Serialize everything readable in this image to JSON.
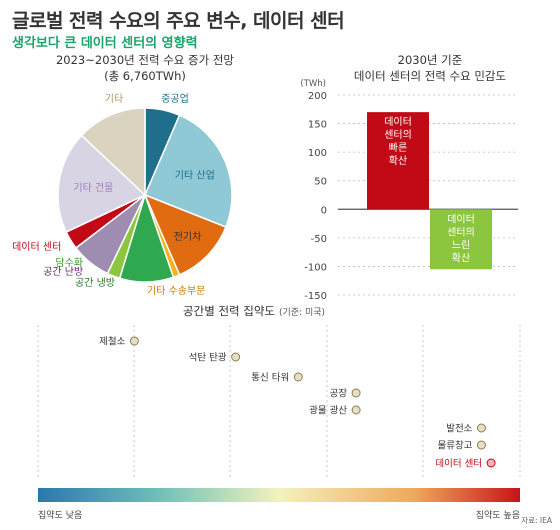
{
  "header": {
    "title": "글로벌 전력 수요의 주요 변수, 데이터 센터",
    "subtitle": "생각보다 큰 데이터 센터의 영향력"
  },
  "chart_data": [
    {
      "type": "pie",
      "title": "2023~2030년 전력 수요 증가 전망",
      "subtitle": "(총 6,760TWh)",
      "slices": [
        {
          "label": "중공업",
          "value": 0.065,
          "color": "#1f6e8c",
          "label_color": "#1f6e8c"
        },
        {
          "label": "기타 산업",
          "value": 0.245,
          "color": "#8ec9d5",
          "label_color": "#1f6e8c"
        },
        {
          "label": "전기차",
          "value": 0.125,
          "color": "#e06b10",
          "label_color": "#333333"
        },
        {
          "label": "기타 수송부문",
          "value": 0.012,
          "color": "#f2b21c",
          "label_color": "#c87a00"
        },
        {
          "label": "공간 냉방",
          "value": 0.1,
          "color": "#2fa84f",
          "label_color": "#2a7a2a"
        },
        {
          "label": "담수화",
          "value": 0.024,
          "color": "#8cc63f",
          "label_color": "#3c9a2a"
        },
        {
          "label": "공간 난방",
          "value": 0.075,
          "color": "#9e8db0",
          "label_color": "#6a2a7a"
        },
        {
          "label": "데이터 센터",
          "value": 0.034,
          "color": "#c20a17",
          "label_color": "#c20a17"
        },
        {
          "label": "기타 건물",
          "value": 0.19,
          "color": "#d8d4e4",
          "label_color": "#9b7fc0"
        },
        {
          "label": "기타",
          "value": 0.13,
          "color": "#d9d3c0",
          "label_color": "#a89a6a"
        }
      ]
    },
    {
      "type": "bar",
      "title": "2030년 기준",
      "subtitle": "데이터 센터의 전력 수요 민감도",
      "ylabel": "(TWh)",
      "ylim": [
        -150,
        200
      ],
      "yticks": [
        200,
        150,
        100,
        50,
        0,
        -50,
        -100,
        -150
      ],
      "bars": [
        {
          "label": "데이터 센터의 빠른 확산",
          "lines": [
            "데이터",
            "센터의",
            "빠른",
            "확산"
          ],
          "value": 170,
          "color": "#c20a17"
        },
        {
          "label": "데이터 센터의 느린 확산",
          "lines": [
            "데이터",
            "센터의",
            "느린",
            "확산"
          ],
          "value": -105,
          "color": "#8cc63f"
        }
      ]
    },
    {
      "type": "scatter",
      "title": "공간별 전력 집약도",
      "title_note": "(기준: 미국)",
      "xaxis_low": "집약도 낮음",
      "xaxis_high": "집약도 높음",
      "points": [
        {
          "label": "제철소",
          "x": 0.2
        },
        {
          "label": "석탄 탄광",
          "x": 0.41
        },
        {
          "label": "통신 타워",
          "x": 0.54
        },
        {
          "label": "공장",
          "x": 0.66
        },
        {
          "label": "광물 광산",
          "x": 0.66
        },
        {
          "label": "발전소",
          "x": 0.92
        },
        {
          "label": "물류창고",
          "x": 0.92
        },
        {
          "label": "데이터 센터",
          "x": 0.94,
          "highlight": true
        }
      ]
    }
  ],
  "source": "자료: IEA"
}
